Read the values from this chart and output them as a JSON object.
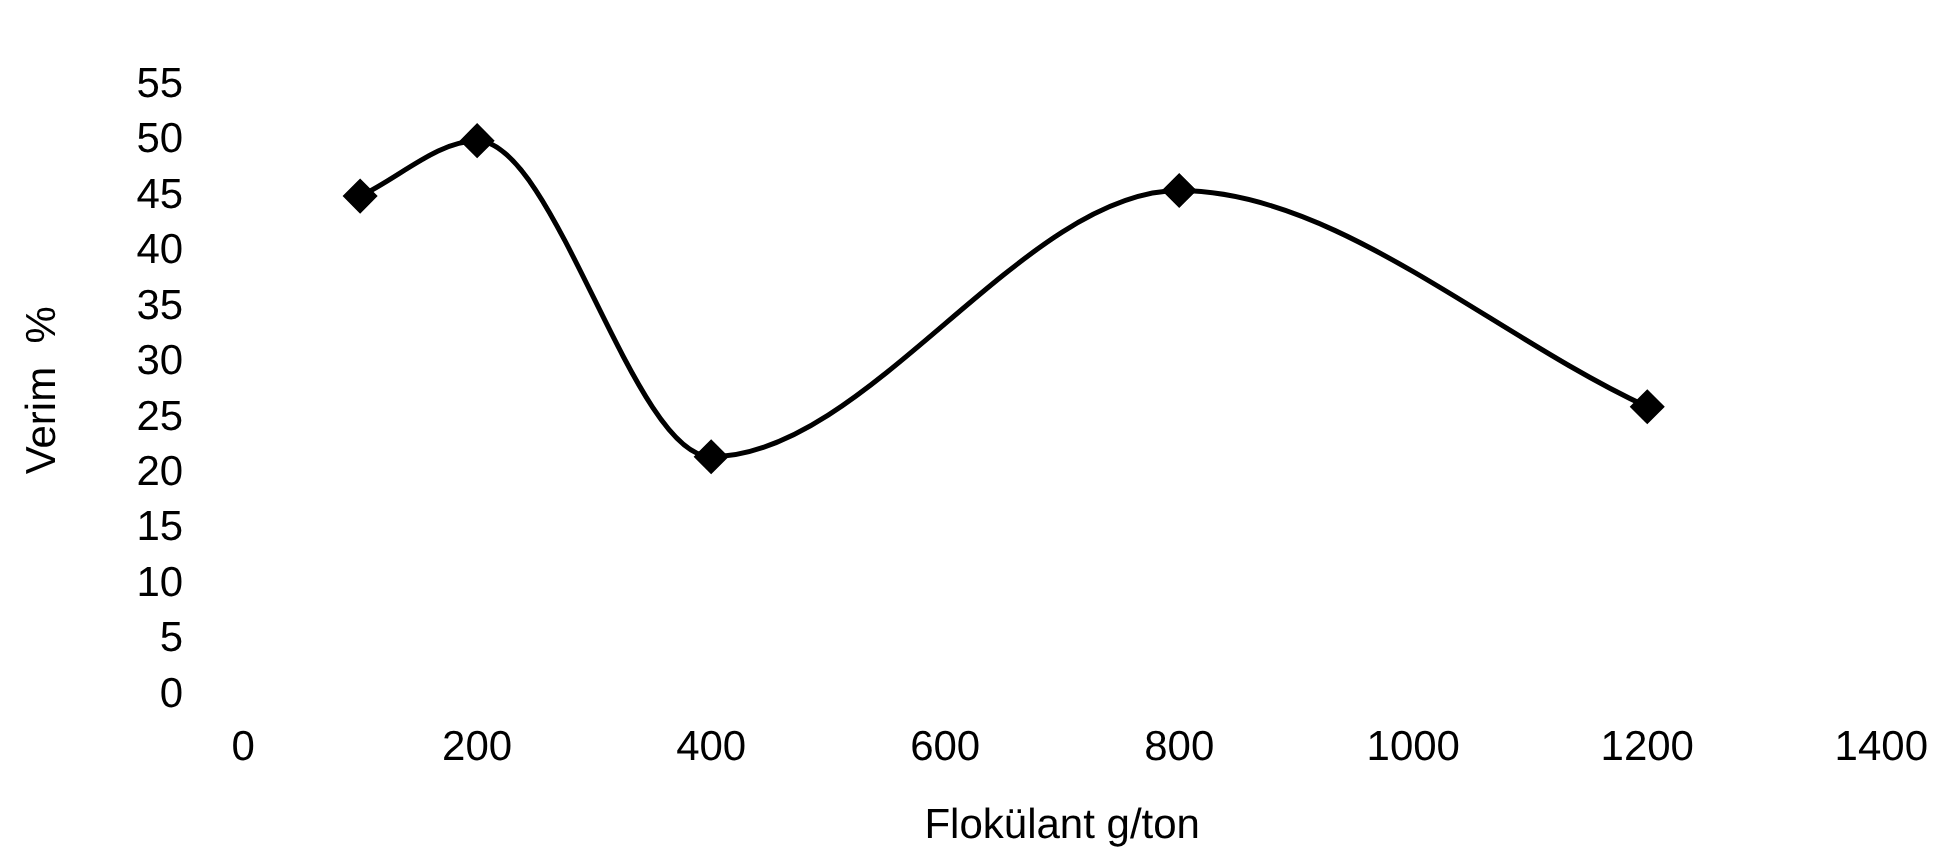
{
  "chart_data": {
    "type": "line",
    "xlabel": "Flokülant g/ton",
    "ylabel": "Verim  %",
    "x": [
      100,
      200,
      400,
      800,
      1200
    ],
    "series": [
      {
        "color": "#000000",
        "values": [
          45,
          50,
          21.5,
          45.5,
          26
        ]
      }
    ],
    "xlim": [
      0,
      1400
    ],
    "xticks": [
      0,
      200,
      400,
      600,
      800,
      1000,
      1200,
      1400
    ],
    "ylim": [
      0,
      55
    ],
    "yticks": [
      0,
      5,
      10,
      15,
      20,
      25,
      30,
      35,
      40,
      45,
      50,
      55
    ],
    "grid": false,
    "legend": false,
    "marker": "diamond",
    "line_style": "solid"
  }
}
